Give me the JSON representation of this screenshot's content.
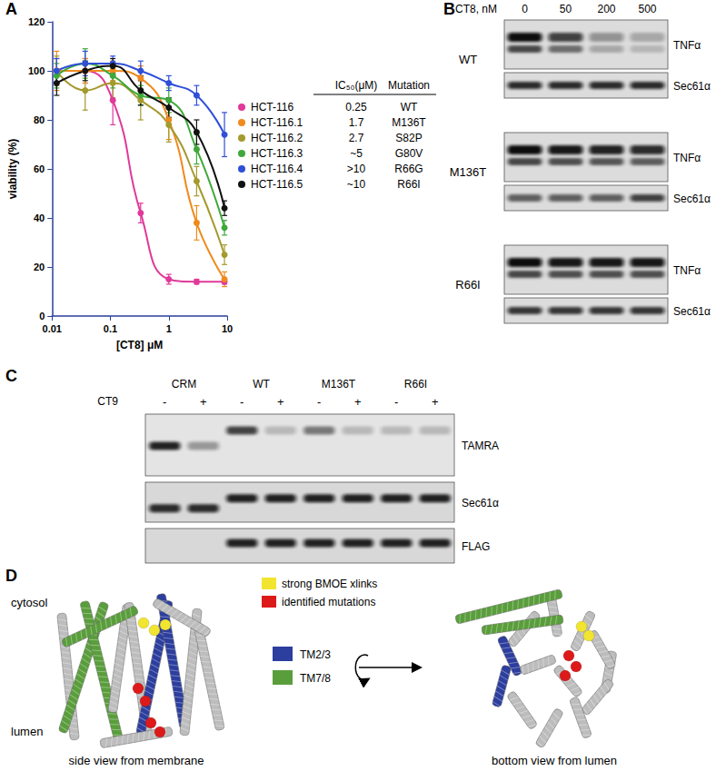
{
  "chart_data": {
    "type": "line",
    "panel": "A",
    "x_label": "[CT8] μM",
    "y_label": "viability (%)",
    "log": "x",
    "grid": false,
    "legend": "right",
    "xlim": [
      0.01,
      10
    ],
    "xticks": [
      0.01,
      0.1,
      1,
      10
    ],
    "ylim": [
      0,
      120
    ],
    "yticks": [
      0,
      20,
      40,
      60,
      80,
      100,
      120
    ],
    "legend_header": {
      "ic50": "IC₅₀(μM)",
      "mutation": "Mutation"
    },
    "x": [
      0.012,
      0.037,
      0.11,
      0.33,
      1,
      3,
      9
    ],
    "series": [
      {
        "name": "HCT-116",
        "color": "#e0399a",
        "marker": "circle",
        "ic50": "0.25",
        "mutation": "WT",
        "values": [
          100,
          100,
          88,
          42,
          15,
          14,
          14
        ],
        "errors": [
          5,
          5,
          10,
          4,
          2,
          1,
          1
        ]
      },
      {
        "name": "HCT-116.1",
        "color": "#f08a1c",
        "marker": "circle",
        "ic50": "1.7",
        "mutation": "M136T",
        "values": [
          100,
          100,
          100,
          97,
          80,
          38,
          15
        ],
        "errors": [
          8,
          5,
          4,
          5,
          8,
          7,
          3
        ]
      },
      {
        "name": "HCT-116.2",
        "color": "#a49a2d",
        "marker": "circle",
        "ic50": "2.7",
        "mutation": "S82P",
        "values": [
          100,
          92,
          95,
          88,
          78,
          55,
          25
        ],
        "errors": [
          6,
          8,
          6,
          8,
          7,
          6,
          4
        ]
      },
      {
        "name": "HCT-116.3",
        "color": "#3fa83a",
        "marker": "circle",
        "ic50": "~5",
        "mutation": "G80V",
        "values": [
          98,
          103,
          98,
          90,
          88,
          68,
          36
        ],
        "errors": [
          5,
          6,
          5,
          4,
          5,
          6,
          3
        ]
      },
      {
        "name": "HCT-116.4",
        "color": "#2f4fd8",
        "marker": "circle",
        "ic50": ">10",
        "mutation": "R66G",
        "values": [
          100,
          103,
          103,
          100,
          95,
          90,
          74
        ],
        "errors": [
          5,
          5,
          3,
          4,
          3,
          4,
          9
        ]
      },
      {
        "name": "HCT-116.5",
        "color": "#111111",
        "marker": "circle",
        "ic50": "~10",
        "mutation": "R66I",
        "values": [
          95,
          100,
          102,
          92,
          85,
          75,
          44
        ],
        "errors": [
          5,
          4,
          3,
          6,
          4,
          5,
          3
        ]
      }
    ]
  },
  "figure": {
    "B": {
      "label": "B",
      "treatment": "CT8, nM",
      "doses": [
        0,
        50,
        200,
        500
      ],
      "rows": [
        {
          "name": "WT",
          "blots": [
            {
              "label": "TNFα",
              "intensity": [
                1,
                0.75,
                0.35,
                0.25
              ]
            },
            {
              "label": "Sec61α",
              "intensity": [
                0.85,
                0.85,
                0.85,
                0.85
              ]
            }
          ]
        },
        {
          "name": "M136T",
          "blots": [
            {
              "label": "TNFα",
              "intensity": [
                1,
                0.95,
                0.9,
                0.85
              ]
            },
            {
              "label": "Sec61α",
              "intensity": [
                0.6,
                0.6,
                0.6,
                0.75
              ]
            }
          ]
        },
        {
          "name": "R66I",
          "blots": [
            {
              "label": "TNFα",
              "intensity": [
                1,
                0.95,
                0.95,
                0.95
              ]
            },
            {
              "label": "Sec61α",
              "intensity": [
                0.8,
                0.8,
                0.8,
                0.8
              ]
            }
          ]
        }
      ]
    },
    "C": {
      "label": "C",
      "treatment": "CT9",
      "groups": [
        {
          "name": "CRM",
          "lanes": [
            "-",
            "+"
          ]
        },
        {
          "name": "WT",
          "lanes": [
            "-",
            "+"
          ]
        },
        {
          "name": "M136T",
          "lanes": [
            "-",
            "+"
          ]
        },
        {
          "name": "R66I",
          "lanes": [
            "-",
            "+"
          ]
        }
      ],
      "blots": [
        {
          "label": "TAMRA",
          "intensity": [
            0.9,
            0.35,
            0.75,
            0.2,
            0.5,
            0.2,
            0.2,
            0.2
          ]
        },
        {
          "label": "Sec61α",
          "intensity": [
            0.85,
            0.85,
            0.9,
            0.9,
            0.9,
            0.9,
            0.9,
            0.9
          ]
        },
        {
          "label": "FLAG",
          "intensity": [
            0,
            0,
            0.9,
            0.9,
            0.9,
            0.9,
            0.9,
            0.9
          ]
        }
      ]
    },
    "D": {
      "label": "D",
      "markers": [
        {
          "label": "strong BMOE xlinks",
          "color": "#f2e530"
        },
        {
          "label": "identified mutations",
          "color": "#dd1a1a"
        }
      ],
      "domains": [
        {
          "label": "TM2/3",
          "color": "#2c3e9e"
        },
        {
          "label": "TM7/8",
          "color": "#5a9e3c"
        }
      ],
      "sides": [
        "cytosol",
        "lumen"
      ],
      "views": [
        "side view from membrane",
        "bottom view from lumen"
      ]
    }
  }
}
